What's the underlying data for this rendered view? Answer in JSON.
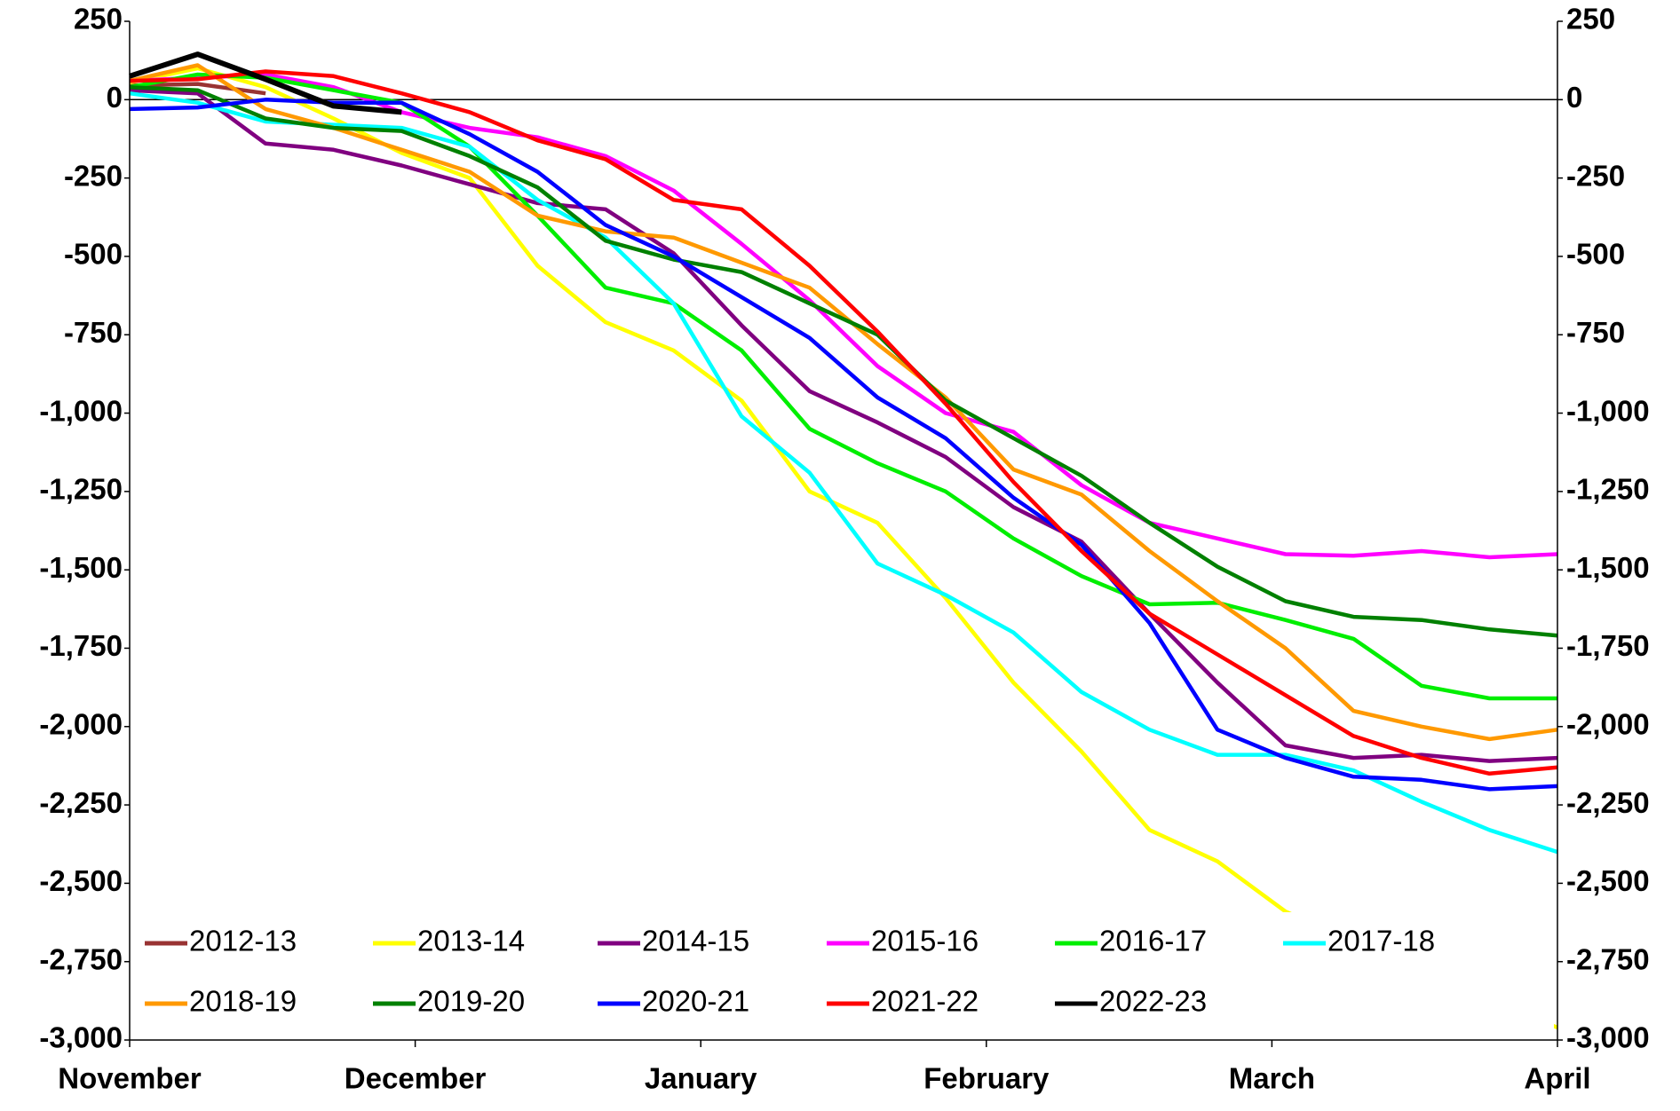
{
  "chart_data": {
    "type": "line",
    "x": [
      0,
      1,
      2,
      3,
      4,
      5,
      6,
      7,
      8,
      9,
      10,
      11,
      12,
      13,
      14,
      15,
      16,
      17,
      18,
      19,
      20,
      21
    ],
    "xlim": [
      0,
      21
    ],
    "xticks": [
      {
        "value": 0,
        "label": "November"
      },
      {
        "value": 4.2,
        "label": "December"
      },
      {
        "value": 8.4,
        "label": "January"
      },
      {
        "value": 12.6,
        "label": "February"
      },
      {
        "value": 16.8,
        "label": "March"
      },
      {
        "value": 21,
        "label": "April"
      }
    ],
    "ylim": [
      -3000,
      250
    ],
    "yticks": [
      {
        "value": -3000,
        "label": "-3,000"
      },
      {
        "value": -2750,
        "label": "-2,750"
      },
      {
        "value": -2500,
        "label": "-2,500"
      },
      {
        "value": -2250,
        "label": "-2,250"
      },
      {
        "value": -2000,
        "label": "-2,000"
      },
      {
        "value": -1750,
        "label": "-1,750"
      },
      {
        "value": -1500,
        "label": "-1,500"
      },
      {
        "value": -1250,
        "label": "-1,250"
      },
      {
        "value": -1000,
        "label": "-1,000"
      },
      -750,
      -500,
      -250,
      0,
      250
    ],
    "y2lim": [
      -3000,
      250
    ],
    "y2ticks": [
      {
        "value": -3000,
        "label": "-3,000"
      },
      {
        "value": -2750,
        "label": "-2,750"
      },
      {
        "value": -2500,
        "label": "-2,500"
      },
      {
        "value": -2250,
        "label": "-2,250"
      },
      {
        "value": -2000,
        "label": "-2,000"
      },
      {
        "value": -1750,
        "label": "-1,750"
      },
      {
        "value": -1500,
        "label": "-1,500"
      },
      {
        "value": -1250,
        "label": "-1,250"
      },
      {
        "value": -1000,
        "label": "-1,000"
      },
      -750,
      -500,
      -250,
      0,
      250
    ],
    "grid": false,
    "legend": "bottom",
    "series": [
      {
        "name": "2012-13",
        "color": "#993333",
        "values": [
          45,
          50,
          20,
          null,
          null,
          null,
          null,
          null,
          null,
          null,
          null,
          null,
          null,
          null,
          null,
          null,
          null,
          null,
          null,
          null,
          null,
          null
        ]
      },
      {
        "name": "2013-14",
        "color": "#ffff00",
        "values": [
          55,
          100,
          40,
          -60,
          -170,
          -250,
          -530,
          -710,
          -800,
          -960,
          -1250,
          -1350,
          -1590,
          -1860,
          -2080,
          -2330,
          -2430,
          -2590,
          -2690,
          -2780,
          -2880,
          -2960
        ]
      },
      {
        "name": "2014-15",
        "color": "#800080",
        "values": [
          30,
          20,
          -140,
          -160,
          -210,
          -270,
          -330,
          -350,
          -490,
          -720,
          -930,
          -1030,
          -1140,
          -1300,
          -1410,
          -1640,
          -1860,
          -2060,
          -2100,
          -2090,
          -2110,
          -2100
        ]
      },
      {
        "name": "2015-16",
        "color": "#ff00ff",
        "values": [
          60,
          70,
          80,
          40,
          -40,
          -90,
          -120,
          -180,
          -290,
          -460,
          -640,
          -850,
          -1000,
          -1060,
          -1230,
          -1350,
          -1400,
          -1450,
          -1455,
          -1440,
          -1460,
          -1450
        ]
      },
      {
        "name": "2016-17",
        "color": "#00ee00",
        "values": [
          40,
          80,
          70,
          30,
          -10,
          -150,
          -370,
          -600,
          -650,
          -800,
          -1050,
          -1160,
          -1250,
          -1400,
          -1520,
          -1610,
          -1605,
          -1660,
          -1720,
          -1870,
          -1910,
          -1910
        ]
      },
      {
        "name": "2017-18",
        "color": "#00ffff",
        "values": [
          20,
          -10,
          -70,
          -80,
          -90,
          -150,
          -320,
          -440,
          -650,
          -1010,
          -1190,
          -1480,
          -1580,
          -1700,
          -1890,
          -2010,
          -2090,
          -2090,
          -2140,
          -2240,
          -2330,
          -2400
        ]
      },
      {
        "name": "2018-19",
        "color": "#ff9900",
        "values": [
          60,
          110,
          -30,
          -90,
          -160,
          -230,
          -370,
          -420,
          -440,
          -520,
          -600,
          -780,
          -950,
          -1180,
          -1260,
          -1440,
          -1600,
          -1750,
          -1950,
          -2000,
          -2040,
          -2010
        ]
      },
      {
        "name": "2019-20",
        "color": "#008000",
        "values": [
          40,
          30,
          -60,
          -90,
          -100,
          -180,
          -280,
          -450,
          -510,
          -550,
          -650,
          -750,
          -960,
          -1080,
          -1200,
          -1350,
          -1490,
          -1600,
          -1650,
          -1660,
          -1690,
          -1710
        ]
      },
      {
        "name": "2020-21",
        "color": "#0000ff",
        "values": [
          -30,
          -25,
          0,
          -10,
          -10,
          -110,
          -230,
          -400,
          -500,
          -630,
          -760,
          -950,
          -1080,
          -1270,
          -1420,
          -1670,
          -2010,
          -2100,
          -2160,
          -2170,
          -2200,
          -2190
        ]
      },
      {
        "name": "2021-22",
        "color": "#ff0000",
        "values": [
          60,
          65,
          90,
          75,
          20,
          -40,
          -130,
          -190,
          -320,
          -350,
          -530,
          -740,
          -970,
          -1220,
          -1440,
          -1640,
          -1770,
          -1900,
          -2030,
          -2100,
          -2150,
          -2130
        ]
      },
      {
        "name": "2022-23",
        "color": "#000000",
        "values": [
          75,
          145,
          65,
          -20,
          -40,
          null,
          null,
          null,
          null,
          null,
          null,
          null,
          null,
          null,
          null,
          null,
          null,
          null,
          null,
          null,
          null,
          null
        ]
      }
    ]
  }
}
